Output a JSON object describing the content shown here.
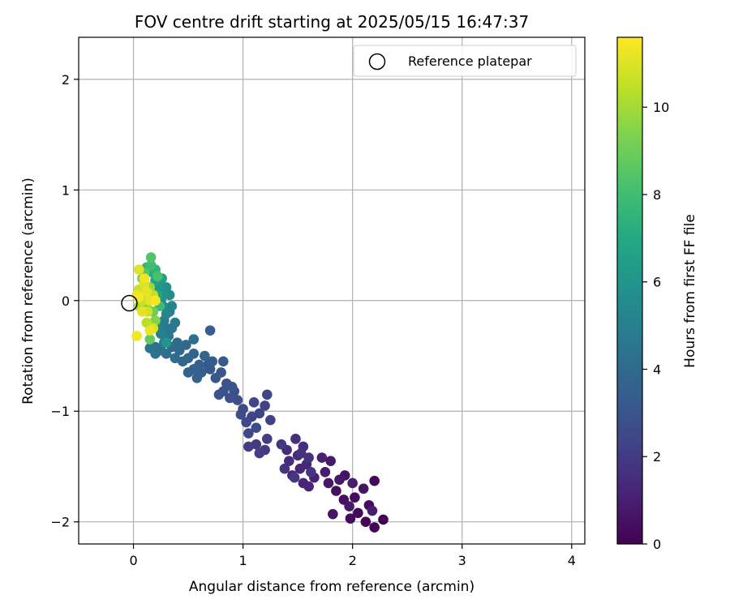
{
  "chart_data": {
    "type": "scatter",
    "title": "FOV centre drift starting at 2025/05/15 16:47:37",
    "xlabel": "Angular distance from reference (arcmin)",
    "ylabel": "Rotation from reference (arcmin)",
    "xlim": [
      -0.5,
      4.12
    ],
    "ylim": [
      -2.2,
      2.38
    ],
    "xticks": [
      0,
      1,
      2,
      3,
      4
    ],
    "yticks": [
      -2,
      -1,
      0,
      1,
      2
    ],
    "xtick_labels": [
      "0",
      "1",
      "2",
      "3",
      "4"
    ],
    "ytick_labels": [
      "−2",
      "−1",
      "0",
      "1",
      "2"
    ],
    "grid": true,
    "legend": {
      "placement": "top-right",
      "entries": [
        {
          "label": "Reference platepar",
          "marker": "open-circle"
        }
      ]
    },
    "reference_point": {
      "x": 0,
      "y": 0
    },
    "colorbar": {
      "label": "Hours from first FF file",
      "colormap": "viridis",
      "range": [
        0,
        11.6
      ],
      "ticks": [
        0,
        2,
        4,
        6,
        8,
        10
      ],
      "tick_labels": [
        "0",
        "2",
        "4",
        "6",
        "8",
        "10"
      ]
    },
    "series": [
      {
        "color_by": "hours",
        "points": [
          {
            "x": 2.28,
            "y": -1.98,
            "c": 0.0
          },
          {
            "x": 2.2,
            "y": -2.05,
            "c": 0.1
          },
          {
            "x": 2.12,
            "y": -2.0,
            "c": 0.15
          },
          {
            "x": 2.05,
            "y": -1.92,
            "c": 0.2
          },
          {
            "x": 2.2,
            "y": -1.63,
            "c": 0.25
          },
          {
            "x": 1.98,
            "y": -1.97,
            "c": 0.3
          },
          {
            "x": 2.15,
            "y": -1.85,
            "c": 0.35
          },
          {
            "x": 2.02,
            "y": -1.78,
            "c": 0.4
          },
          {
            "x": 1.92,
            "y": -1.8,
            "c": 0.45
          },
          {
            "x": 1.85,
            "y": -1.72,
            "c": 0.5
          },
          {
            "x": 1.93,
            "y": -1.58,
            "c": 0.55
          },
          {
            "x": 1.82,
            "y": -1.93,
            "c": 0.6
          },
          {
            "x": 2.1,
            "y": -1.7,
            "c": 0.65
          },
          {
            "x": 1.78,
            "y": -1.65,
            "c": 0.7
          },
          {
            "x": 1.88,
            "y": -1.62,
            "c": 0.75
          },
          {
            "x": 1.97,
            "y": -1.86,
            "c": 0.8
          },
          {
            "x": 1.8,
            "y": -1.45,
            "c": 0.85
          },
          {
            "x": 1.75,
            "y": -1.55,
            "c": 0.9
          },
          {
            "x": 2.0,
            "y": -1.65,
            "c": 0.95
          },
          {
            "x": 2.18,
            "y": -1.9,
            "c": 1.0
          },
          {
            "x": 1.72,
            "y": -1.42,
            "c": 1.05
          },
          {
            "x": 1.65,
            "y": -1.6,
            "c": 1.1
          },
          {
            "x": 1.55,
            "y": -1.65,
            "c": 1.15
          },
          {
            "x": 1.6,
            "y": -1.68,
            "c": 1.2
          },
          {
            "x": 1.52,
            "y": -1.52,
            "c": 1.25
          },
          {
            "x": 1.45,
            "y": -1.58,
            "c": 1.3
          },
          {
            "x": 1.58,
            "y": -1.48,
            "c": 1.35
          },
          {
            "x": 1.5,
            "y": -1.4,
            "c": 1.4
          },
          {
            "x": 1.42,
            "y": -1.45,
            "c": 1.45
          },
          {
            "x": 1.4,
            "y": -1.35,
            "c": 1.5
          },
          {
            "x": 1.55,
            "y": -1.32,
            "c": 1.55
          },
          {
            "x": 1.48,
            "y": -1.25,
            "c": 1.6
          },
          {
            "x": 1.6,
            "y": -1.42,
            "c": 1.65
          },
          {
            "x": 1.38,
            "y": -1.52,
            "c": 1.7
          },
          {
            "x": 1.53,
            "y": -1.38,
            "c": 1.75
          },
          {
            "x": 1.62,
            "y": -1.55,
            "c": 1.8
          },
          {
            "x": 1.47,
            "y": -1.6,
            "c": 1.85
          },
          {
            "x": 1.35,
            "y": -1.3,
            "c": 1.9
          },
          {
            "x": 1.2,
            "y": -1.35,
            "c": 1.95
          },
          {
            "x": 1.12,
            "y": -1.3,
            "c": 2.0
          },
          {
            "x": 1.05,
            "y": -1.32,
            "c": 2.05
          },
          {
            "x": 1.22,
            "y": -1.25,
            "c": 2.1
          },
          {
            "x": 1.15,
            "y": -1.38,
            "c": 2.15
          },
          {
            "x": 1.25,
            "y": -1.08,
            "c": 2.2
          },
          {
            "x": 1.2,
            "y": -0.95,
            "c": 2.25
          },
          {
            "x": 1.15,
            "y": -1.02,
            "c": 2.3
          },
          {
            "x": 1.08,
            "y": -1.05,
            "c": 2.35
          },
          {
            "x": 1.22,
            "y": -0.85,
            "c": 2.4
          },
          {
            "x": 1.1,
            "y": -0.92,
            "c": 2.45
          },
          {
            "x": 1.03,
            "y": -1.1,
            "c": 2.5
          },
          {
            "x": 1.05,
            "y": -1.2,
            "c": 2.55
          },
          {
            "x": 1.0,
            "y": -0.98,
            "c": 2.6
          },
          {
            "x": 0.98,
            "y": -1.03,
            "c": 2.65
          },
          {
            "x": 1.12,
            "y": -1.15,
            "c": 2.7
          },
          {
            "x": 0.95,
            "y": -0.9,
            "c": 2.75
          },
          {
            "x": 0.92,
            "y": -0.82,
            "c": 2.8
          },
          {
            "x": 0.88,
            "y": -0.88,
            "c": 2.85
          },
          {
            "x": 0.85,
            "y": -0.75,
            "c": 2.9
          },
          {
            "x": 0.82,
            "y": -0.82,
            "c": 2.95
          },
          {
            "x": 0.78,
            "y": -0.85,
            "c": 3.0
          },
          {
            "x": 0.9,
            "y": -0.78,
            "c": 3.05
          },
          {
            "x": 0.8,
            "y": -0.65,
            "c": 3.1
          },
          {
            "x": 0.75,
            "y": -0.7,
            "c": 3.15
          },
          {
            "x": 0.7,
            "y": -0.62,
            "c": 3.2
          },
          {
            "x": 0.68,
            "y": -0.58,
            "c": 3.25
          },
          {
            "x": 0.82,
            "y": -0.55,
            "c": 3.3
          },
          {
            "x": 0.72,
            "y": -0.55,
            "c": 3.35
          },
          {
            "x": 0.7,
            "y": -0.27,
            "c": 3.4
          },
          {
            "x": 0.62,
            "y": -0.65,
            "c": 3.45
          },
          {
            "x": 0.6,
            "y": -0.58,
            "c": 3.5
          },
          {
            "x": 0.55,
            "y": -0.62,
            "c": 3.55
          },
          {
            "x": 0.5,
            "y": -0.65,
            "c": 3.6
          },
          {
            "x": 0.58,
            "y": -0.7,
            "c": 3.65
          },
          {
            "x": 0.65,
            "y": -0.5,
            "c": 3.7
          },
          {
            "x": 0.55,
            "y": -0.48,
            "c": 3.75
          },
          {
            "x": 0.5,
            "y": -0.52,
            "c": 3.8
          },
          {
            "x": 0.45,
            "y": -0.55,
            "c": 3.85
          },
          {
            "x": 0.48,
            "y": -0.4,
            "c": 3.9
          },
          {
            "x": 0.42,
            "y": -0.45,
            "c": 3.95
          },
          {
            "x": 0.4,
            "y": -0.38,
            "c": 4.0
          },
          {
            "x": 0.35,
            "y": -0.42,
            "c": 4.05
          },
          {
            "x": 0.38,
            "y": -0.52,
            "c": 4.1
          },
          {
            "x": 0.3,
            "y": -0.48,
            "c": 4.15
          },
          {
            "x": 0.55,
            "y": -0.35,
            "c": 4.2
          },
          {
            "x": 0.25,
            "y": -0.45,
            "c": 4.25
          },
          {
            "x": 0.2,
            "y": -0.42,
            "c": 4.3
          },
          {
            "x": 0.15,
            "y": -0.43,
            "c": 4.35
          },
          {
            "x": 0.28,
            "y": -0.38,
            "c": 4.4
          },
          {
            "x": 0.2,
            "y": -0.48,
            "c": 4.45
          },
          {
            "x": 0.32,
            "y": -0.32,
            "c": 4.5
          },
          {
            "x": 0.35,
            "y": -0.25,
            "c": 4.55
          },
          {
            "x": 0.3,
            "y": -0.25,
            "c": 4.6
          },
          {
            "x": 0.38,
            "y": -0.2,
            "c": 4.7
          },
          {
            "x": 0.28,
            "y": -0.18,
            "c": 4.8
          },
          {
            "x": 0.33,
            "y": -0.1,
            "c": 4.9
          },
          {
            "x": 0.25,
            "y": -0.3,
            "c": 5.0
          },
          {
            "x": 0.22,
            "y": -0.22,
            "c": 5.1
          },
          {
            "x": 0.35,
            "y": -0.05,
            "c": 5.2
          },
          {
            "x": 0.3,
            "y": -0.12,
            "c": 5.3
          },
          {
            "x": 0.27,
            "y": -0.05,
            "c": 5.4
          },
          {
            "x": 0.33,
            "y": 0.05,
            "c": 5.5
          },
          {
            "x": 0.25,
            "y": 0.0,
            "c": 5.6
          },
          {
            "x": 0.3,
            "y": 0.12,
            "c": 5.7
          },
          {
            "x": 0.22,
            "y": 0.1,
            "c": 5.8
          },
          {
            "x": 0.28,
            "y": 0.05,
            "c": 5.9
          },
          {
            "x": 0.3,
            "y": -0.38,
            "c": 6.0
          },
          {
            "x": 0.24,
            "y": 0.15,
            "c": 6.2
          },
          {
            "x": 0.26,
            "y": 0.2,
            "c": 6.4
          },
          {
            "x": 0.2,
            "y": 0.18,
            "c": 6.6
          },
          {
            "x": 0.22,
            "y": 0.05,
            "c": 6.8
          },
          {
            "x": 0.18,
            "y": 0.25,
            "c": 7.0
          },
          {
            "x": 0.15,
            "y": 0.28,
            "c": 7.2
          },
          {
            "x": 0.2,
            "y": 0.28,
            "c": 7.4
          },
          {
            "x": 0.12,
            "y": 0.3,
            "c": 7.6
          },
          {
            "x": 0.24,
            "y": -0.05,
            "c": 7.8
          },
          {
            "x": 0.16,
            "y": 0.32,
            "c": 8.0
          },
          {
            "x": 0.22,
            "y": 0.22,
            "c": 8.2
          },
          {
            "x": 0.16,
            "y": 0.39,
            "c": 8.4
          },
          {
            "x": 0.1,
            "y": 0.25,
            "c": 8.6
          },
          {
            "x": 0.15,
            "y": -0.35,
            "c": 8.8
          },
          {
            "x": 0.18,
            "y": -0.1,
            "c": 9.0
          },
          {
            "x": 0.08,
            "y": 0.2,
            "c": 9.2
          },
          {
            "x": 0.2,
            "y": -0.18,
            "c": 9.4
          },
          {
            "x": 0.12,
            "y": -0.05,
            "c": 9.6
          },
          {
            "x": 0.15,
            "y": 0.12,
            "c": 9.8
          },
          {
            "x": 0.1,
            "y": 0.05,
            "c": 10.0
          },
          {
            "x": 0.05,
            "y": -0.05,
            "c": 10.2
          },
          {
            "x": 0.12,
            "y": -0.2,
            "c": 10.4
          },
          {
            "x": 0.18,
            "y": 0.05,
            "c": 10.5
          },
          {
            "x": 0.08,
            "y": 0.0,
            "c": 10.6
          },
          {
            "x": 0.05,
            "y": 0.1,
            "c": 10.7
          },
          {
            "x": 0.13,
            "y": -0.1,
            "c": 10.8
          },
          {
            "x": 0.18,
            "y": -0.25,
            "c": 10.9
          },
          {
            "x": 0.1,
            "y": 0.15,
            "c": 11.0
          },
          {
            "x": 0.05,
            "y": 0.28,
            "c": 11.05
          },
          {
            "x": 0.15,
            "y": 0.0,
            "c": 11.1
          },
          {
            "x": 0.08,
            "y": -0.1,
            "c": 11.15
          },
          {
            "x": 0.12,
            "y": 0.08,
            "c": 11.2
          },
          {
            "x": 0.03,
            "y": 0.05,
            "c": 11.25
          },
          {
            "x": 0.15,
            "y": -0.27,
            "c": 11.3
          },
          {
            "x": 0.1,
            "y": 0.2,
            "c": 11.35
          },
          {
            "x": 0.03,
            "y": -0.32,
            "c": 11.4
          },
          {
            "x": 0.05,
            "y": 0.03,
            "c": 11.45
          },
          {
            "x": 0.2,
            "y": 0.0,
            "c": 11.5
          }
        ]
      }
    ]
  }
}
